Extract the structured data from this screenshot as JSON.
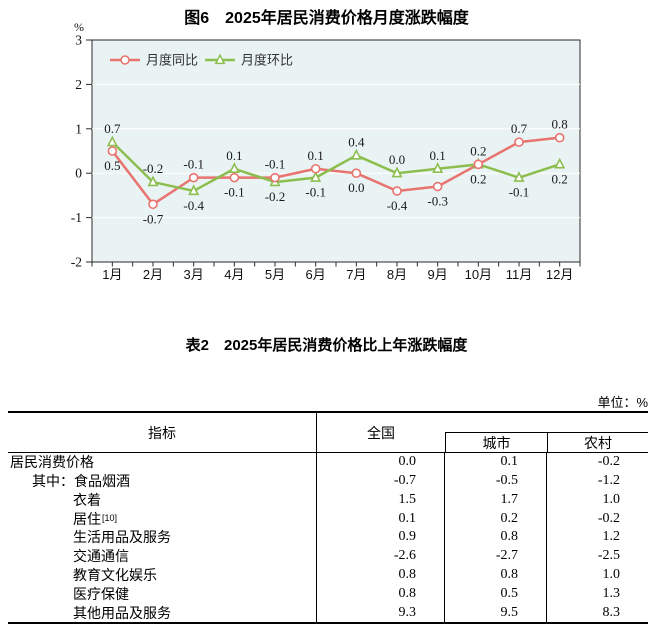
{
  "chart_data": [
    {
      "type": "line",
      "title": "图6　2025年居民消费价格月度涨跌幅度",
      "ylabel": "%",
      "categories": [
        "1月",
        "2月",
        "3月",
        "4月",
        "5月",
        "6月",
        "7月",
        "8月",
        "9月",
        "10月",
        "11月",
        "12月"
      ],
      "series": [
        {
          "name": "月度同比",
          "marker": "circle",
          "color": "#e8736f",
          "values": [
            0.5,
            -0.7,
            -0.1,
            -0.1,
            -0.1,
            0.1,
            0.0,
            -0.4,
            -0.3,
            0.2,
            0.7,
            0.8
          ]
        },
        {
          "name": "月度环比",
          "marker": "triangle",
          "color": "#8cbe4f",
          "values": [
            0.7,
            -0.2,
            -0.4,
            0.1,
            -0.2,
            -0.1,
            0.4,
            0.0,
            0.1,
            0.2,
            -0.1,
            0.2
          ]
        }
      ],
      "ylim": [
        -2,
        3
      ],
      "yticks": [
        3,
        2,
        1,
        0,
        -1,
        -2
      ],
      "grid": true,
      "legend_position": "top-left-inside",
      "plot_bg": "#e9f3f3",
      "grid_color": "#ffffff",
      "axis_color": "#2a2a2a",
      "label_color": "#1a1a1a",
      "point_label_precision": 1
    },
    {
      "type": "table",
      "title": "表2　2025年居民消费价格比上年涨跌幅度",
      "unit_note": "单位：%",
      "columns": [
        "指标",
        "全国",
        "城市",
        "农村"
      ],
      "rows": [
        {
          "label": "居民消费价格",
          "indent": 0,
          "values": [
            "0.0",
            "0.1",
            "-0.2"
          ]
        },
        {
          "label": "其中：食品烟酒",
          "indent": 1,
          "values": [
            "-0.7",
            "-0.5",
            "-1.2"
          ]
        },
        {
          "label": "衣着",
          "indent": 2,
          "values": [
            "1.5",
            "1.7",
            "1.0"
          ]
        },
        {
          "label": "居住",
          "sup": "[10]",
          "indent": 2,
          "values": [
            "0.1",
            "0.2",
            "-0.2"
          ]
        },
        {
          "label": "生活用品及服务",
          "indent": 2,
          "values": [
            "0.9",
            "0.8",
            "1.2"
          ]
        },
        {
          "label": "交通通信",
          "indent": 2,
          "values": [
            "-2.6",
            "-2.7",
            "-2.5"
          ]
        },
        {
          "label": "教育文化娱乐",
          "indent": 2,
          "values": [
            "0.8",
            "0.8",
            "1.0"
          ]
        },
        {
          "label": "医疗保健",
          "indent": 2,
          "values": [
            "0.8",
            "0.5",
            "1.3"
          ]
        },
        {
          "label": "其他用品及服务",
          "indent": 2,
          "values": [
            "9.3",
            "9.5",
            "8.3"
          ]
        }
      ]
    }
  ]
}
